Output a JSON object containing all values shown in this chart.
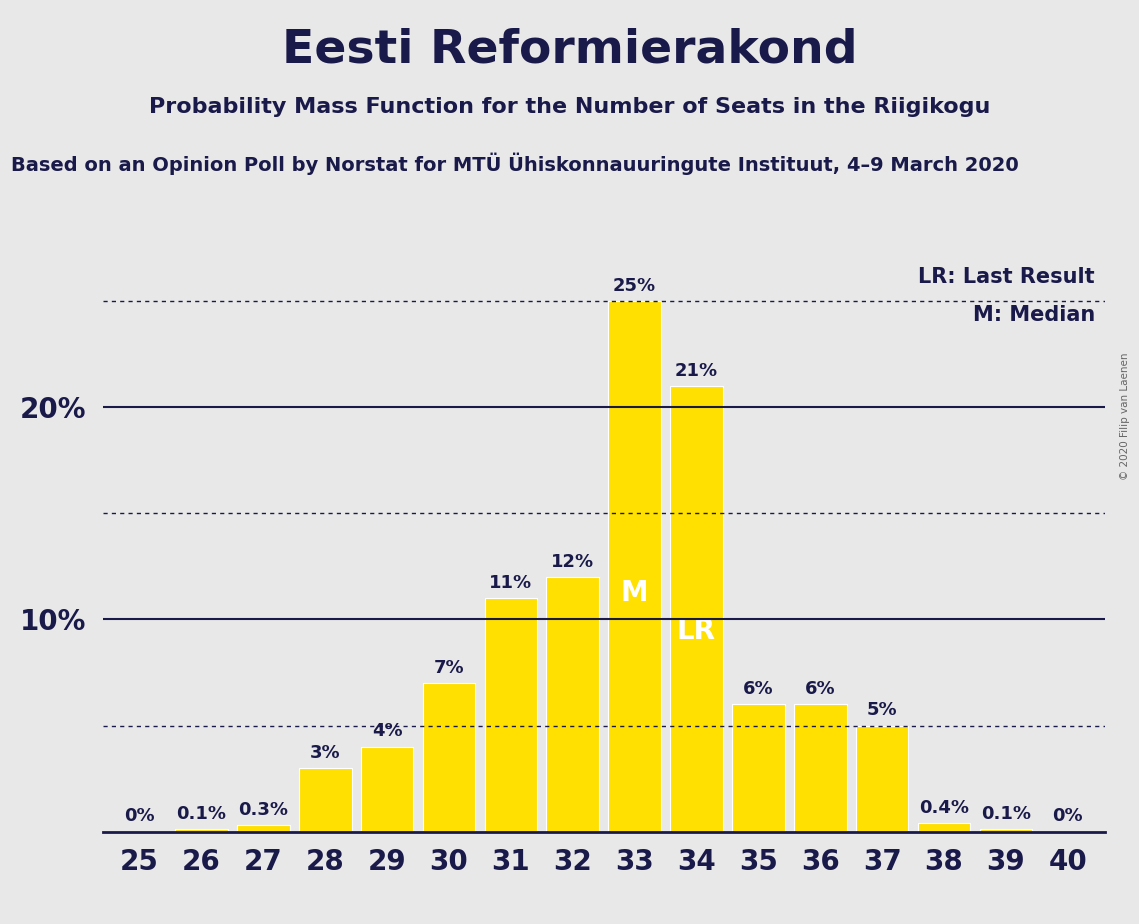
{
  "title": "Eesti Reformierakond",
  "subtitle": "Probability Mass Function for the Number of Seats in the Riigikogu",
  "source": "Based on an Opinion Poll by Norstat for MTÜ Ühiskonnauuringute Instituut, 4–9 March 2020",
  "copyright": "© 2020 Filip van Laenen",
  "categories": [
    25,
    26,
    27,
    28,
    29,
    30,
    31,
    32,
    33,
    34,
    35,
    36,
    37,
    38,
    39,
    40
  ],
  "values": [
    0.0,
    0.1,
    0.3,
    3.0,
    4.0,
    7.0,
    11.0,
    12.0,
    25.0,
    21.0,
    6.0,
    6.0,
    5.0,
    0.4,
    0.1,
    0.0
  ],
  "labels": [
    "0%",
    "0.1%",
    "0.3%",
    "3%",
    "4%",
    "7%",
    "11%",
    "12%",
    "25%",
    "21%",
    "6%",
    "6%",
    "5%",
    "0.4%",
    "0.1%",
    "0%"
  ],
  "bar_color": "#FFE000",
  "bar_edge_color": "#FFE000",
  "background_color": "#E8E8E8",
  "text_color": "#1a1a4a",
  "median_seat": 33,
  "last_result_seat": 34,
  "median_label": "M",
  "lr_label": "LR",
  "legend_lr": "LR: Last Result",
  "legend_m": "M: Median",
  "ylim": [
    0,
    27
  ],
  "hlines_solid": [
    10,
    20
  ],
  "hlines_dotted": [
    5,
    15,
    25
  ],
  "title_fontsize": 34,
  "subtitle_fontsize": 16,
  "source_fontsize": 14,
  "bar_label_fontsize": 13,
  "axis_label_fontsize": 20,
  "inbar_label_fontsize": 20,
  "legend_fontsize": 15
}
